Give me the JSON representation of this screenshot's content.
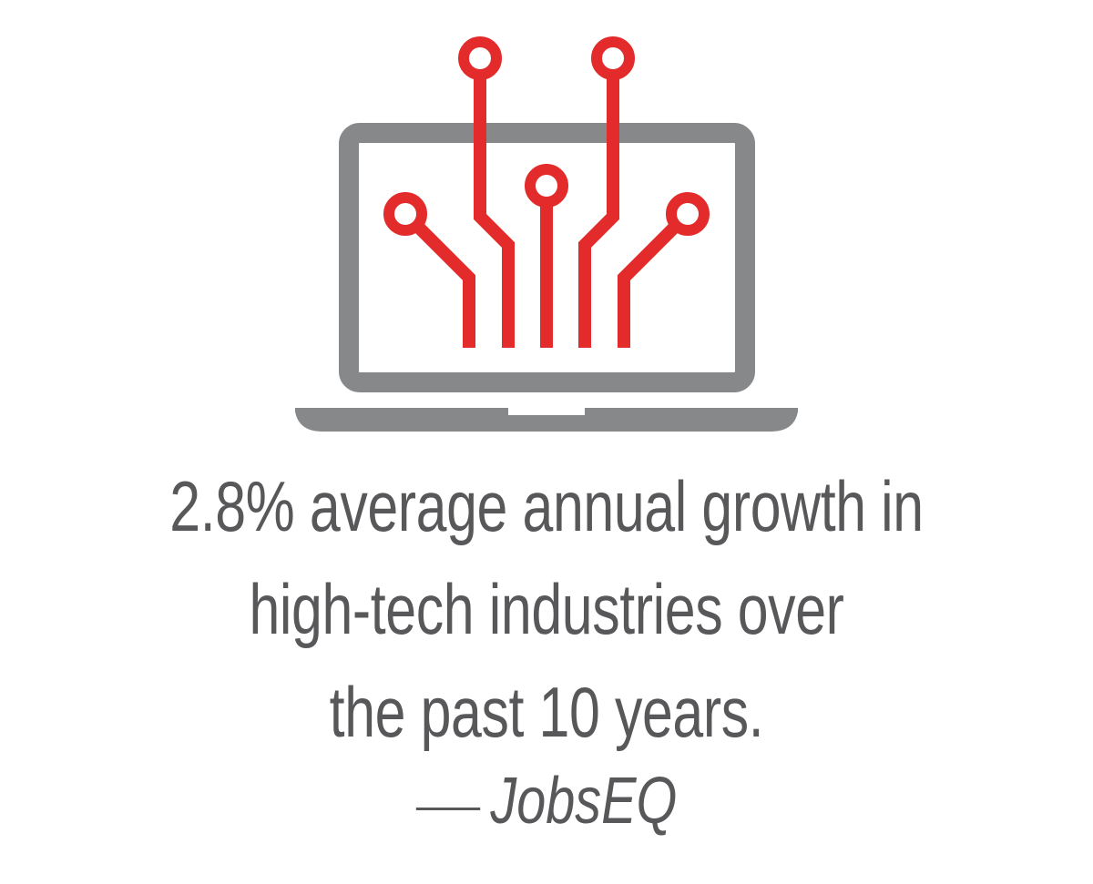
{
  "colors": {
    "laptop_gray": "#87888a",
    "circuit_red": "#e42b2b",
    "text_gray": "#58585a",
    "background": "#ffffff"
  },
  "icons": {
    "main": "laptop-circuit-icon"
  },
  "stat": {
    "line1": "2.8% average annual growth in",
    "line2": "high-tech industries over",
    "line3": "the past 10 years."
  },
  "attribution": {
    "dash": "—",
    "source": "JobsEQ"
  }
}
